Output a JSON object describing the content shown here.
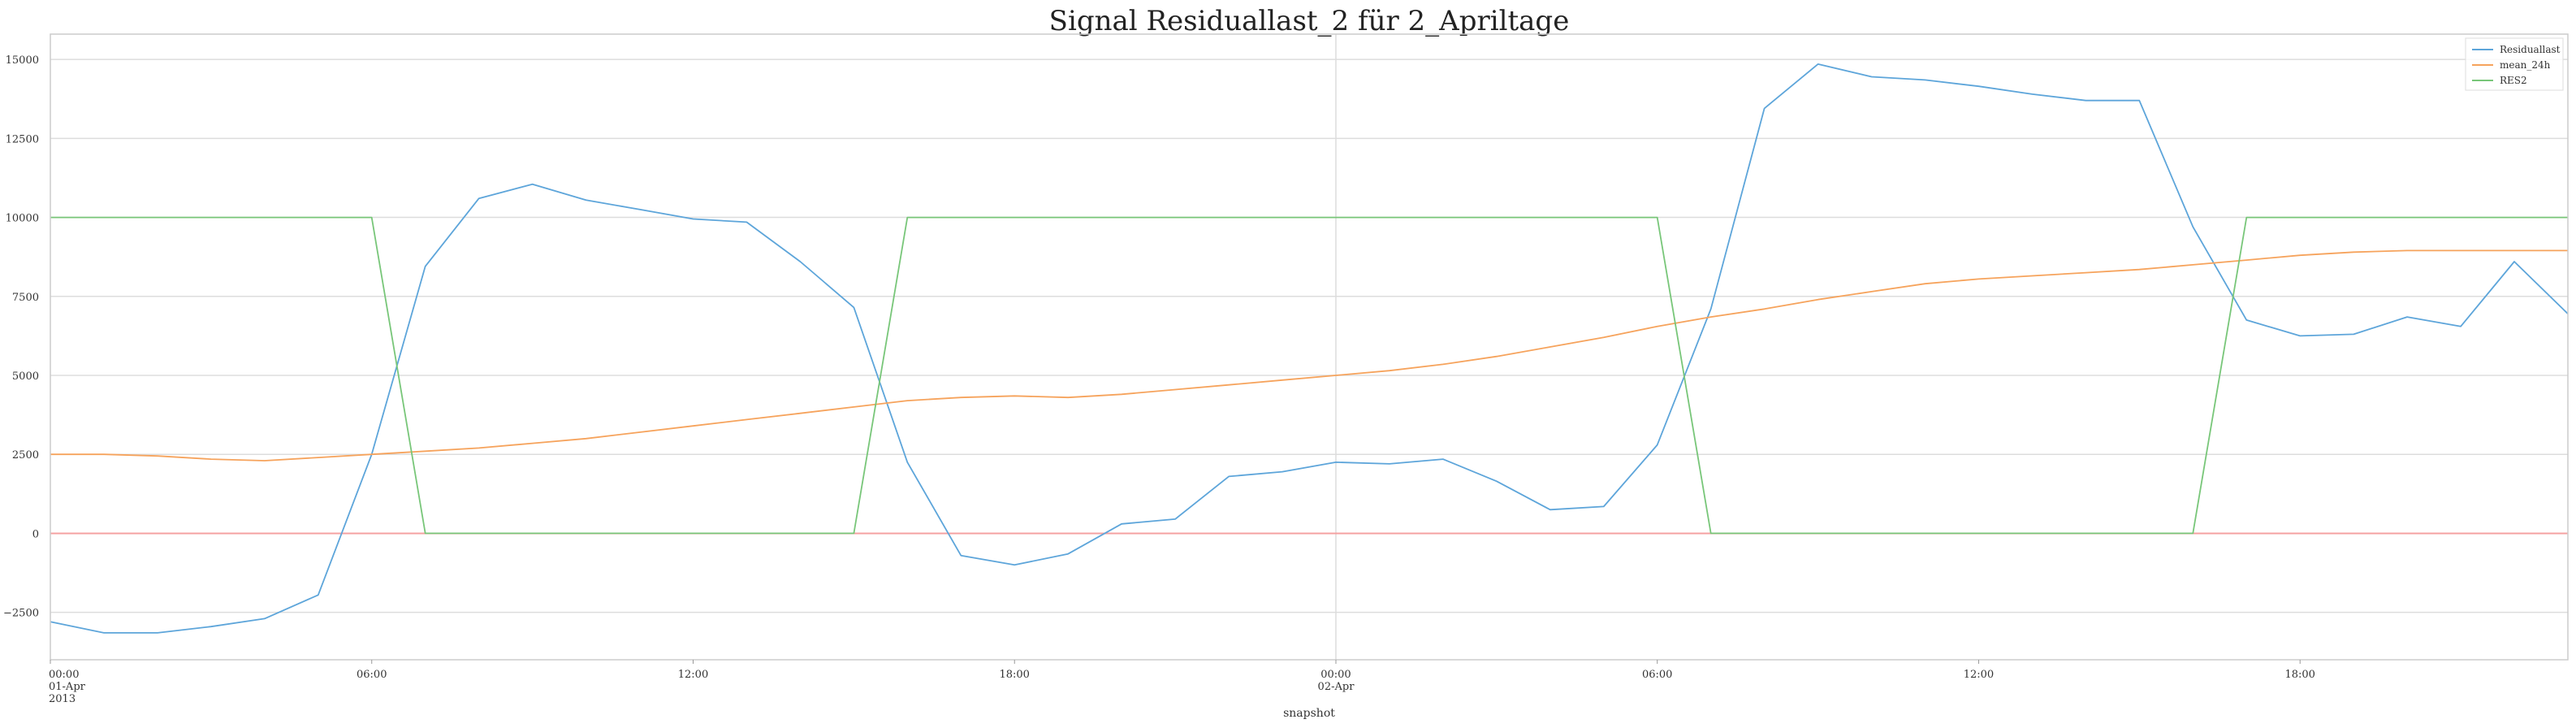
{
  "chart_data": {
    "type": "line",
    "title": "Signal Residuallast_2 für 2_Apriltage",
    "xlabel": "snapshot",
    "ylabel": "",
    "x_hours": [
      0,
      1,
      2,
      3,
      4,
      5,
      6,
      7,
      8,
      9,
      10,
      11,
      12,
      13,
      14,
      15,
      16,
      17,
      18,
      19,
      20,
      21,
      22,
      23,
      24,
      25,
      26,
      27,
      28,
      29,
      30,
      31,
      32,
      33,
      34,
      35,
      36,
      37,
      38,
      39,
      40,
      41,
      42,
      43,
      44,
      45,
      46,
      47
    ],
    "xlim": [
      0,
      47
    ],
    "ylim": [
      -4000,
      15800
    ],
    "yticks": [
      -2500,
      0,
      2500,
      5000,
      7500,
      10000,
      12500,
      15000
    ],
    "ytick_labels": [
      "−2500",
      "0",
      "2500",
      "5000",
      "7500",
      "10000",
      "12500",
      "15000"
    ],
    "xticks": [
      {
        "hour": 0,
        "lines": [
          "00:00",
          "01-Apr",
          "2013"
        ]
      },
      {
        "hour": 6,
        "lines": [
          "06:00"
        ]
      },
      {
        "hour": 12,
        "lines": [
          "12:00"
        ]
      },
      {
        "hour": 18,
        "lines": [
          "18:00"
        ]
      },
      {
        "hour": 24,
        "lines": [
          "00:00",
          "02-Apr"
        ]
      },
      {
        "hour": 30,
        "lines": [
          "06:00"
        ]
      },
      {
        "hour": 36,
        "lines": [
          "12:00"
        ]
      },
      {
        "hour": 42,
        "lines": [
          "18:00"
        ]
      }
    ],
    "zero_line": {
      "value": 0,
      "color": "#f4a0a0"
    },
    "legend_position": "top-right",
    "series": [
      {
        "name": "Residuallast",
        "color": "#5da5da",
        "values": [
          -2800,
          -3150,
          -3150,
          -2950,
          -2700,
          -1950,
          2500,
          8450,
          10600,
          11050,
          10550,
          10250,
          9950,
          9850,
          8600,
          7150,
          2250,
          -700,
          -1000,
          -650,
          300,
          450,
          1800,
          1950,
          2250,
          2200,
          2350,
          1650,
          750,
          850,
          2800,
          7100,
          13450,
          14850,
          14450,
          14350,
          14150,
          13900,
          13700,
          13700,
          9700,
          6750,
          6250,
          6300,
          6850,
          6550,
          8600,
          6950
        ]
      },
      {
        "name": "mean_24h",
        "color": "#f6a35c",
        "values": [
          2500,
          2500,
          2450,
          2350,
          2300,
          2400,
          2500,
          2600,
          2700,
          2850,
          3000,
          3200,
          3400,
          3600,
          3800,
          4000,
          4200,
          4300,
          4350,
          4300,
          4400,
          4550,
          4700,
          4850,
          5000,
          5150,
          5350,
          5600,
          5900,
          6200,
          6550,
          6850,
          7100,
          7400,
          7650,
          7900,
          8050,
          8150,
          8250,
          8350,
          8500,
          8650,
          8800,
          8900,
          8950,
          8950,
          8950,
          8950
        ]
      },
      {
        "name": "RES2",
        "color": "#78c679",
        "values": [
          10000,
          10000,
          10000,
          10000,
          10000,
          10000,
          10000,
          0,
          0,
          0,
          0,
          0,
          0,
          0,
          0,
          0,
          10000,
          10000,
          10000,
          10000,
          10000,
          10000,
          10000,
          10000,
          10000,
          10000,
          10000,
          10000,
          10000,
          10000,
          10000,
          0,
          0,
          0,
          0,
          0,
          0,
          0,
          0,
          0,
          0,
          10000,
          10000,
          10000,
          10000,
          10000,
          10000,
          10000
        ]
      }
    ]
  }
}
